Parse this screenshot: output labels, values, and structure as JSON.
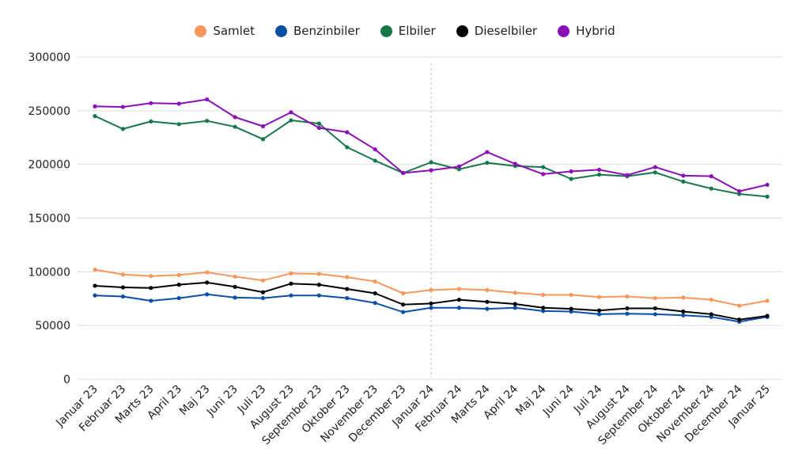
{
  "chart_data": {
    "type": "line",
    "title": "",
    "xlabel": "",
    "ylabel": "",
    "ylim": [
      0,
      300000
    ],
    "yticks": [
      0,
      50000,
      100000,
      150000,
      200000,
      250000,
      300000
    ],
    "ytick_labels": [
      "0",
      "50000",
      "100000",
      "150000",
      "200000",
      "250000",
      "300000"
    ],
    "grid": true,
    "legend_position": "top-center",
    "marker_category": "Januar 24",
    "categories": [
      "Januar 23",
      "Februar 23",
      "Marts 23",
      "April 23",
      "Maj 23",
      "Juni 23",
      "Juli 23",
      "August 23",
      "September 23",
      "Oktober 23",
      "November 23",
      "December 23",
      "Januar 24",
      "Februar 24",
      "Marts 24",
      "April 24",
      "Maj 24",
      "Juni 24",
      "Juli 24",
      "August 24",
      "September 24",
      "Oktober 24",
      "November 24",
      "December 24",
      "Januar 25"
    ],
    "series": [
      {
        "name": "Samlet",
        "color": "#f7975a",
        "values": [
          102000,
          97500,
          96000,
          97000,
          99500,
          95500,
          92000,
          98500,
          98000,
          95000,
          91000,
          80000,
          83000,
          84000,
          83000,
          80500,
          78500,
          78500,
          76500,
          77000,
          75500,
          76000,
          74000,
          68500,
          73000
        ]
      },
      {
        "name": "Benzinbiler",
        "color": "#0b4ea8",
        "values": [
          78000,
          77000,
          73000,
          75500,
          79000,
          76000,
          75500,
          78000,
          78000,
          75500,
          71000,
          62500,
          66500,
          66500,
          65500,
          66500,
          63500,
          63000,
          60500,
          61000,
          60500,
          59500,
          58000,
          53500,
          58000
        ]
      },
      {
        "name": "Elbiler",
        "color": "#16784a",
        "values": [
          245000,
          233000,
          240000,
          237500,
          240500,
          235000,
          223500,
          241000,
          238000,
          216000,
          203500,
          192000,
          202000,
          195500,
          201500,
          198500,
          197500,
          186500,
          190500,
          189000,
          192500,
          184000,
          177500,
          172500,
          170000
        ]
      },
      {
        "name": "Dieselbiler",
        "color": "#000000",
        "values": [
          87000,
          85500,
          85000,
          88000,
          90000,
          86000,
          81000,
          89000,
          88000,
          84000,
          80000,
          69500,
          70500,
          74000,
          72000,
          70000,
          66500,
          65500,
          64000,
          66000,
          66000,
          63000,
          60500,
          55500,
          59000
        ]
      },
      {
        "name": "Hybrid",
        "color": "#8a0fb5",
        "values": [
          254000,
          253500,
          257000,
          256500,
          260500,
          244000,
          235500,
          248500,
          234000,
          230000,
          214000,
          192000,
          194500,
          198000,
          211500,
          200500,
          191000,
          193500,
          195000,
          190000,
          197500,
          189500,
          189000,
          175000,
          181000
        ]
      }
    ]
  }
}
